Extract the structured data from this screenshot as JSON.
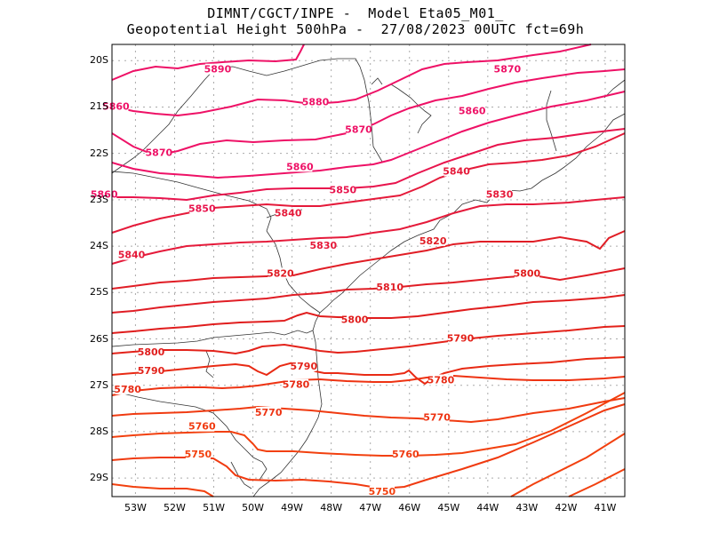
{
  "title": {
    "line1": "DIMNT/CGCT/INPE -  Model Eta05_M01_",
    "line2": "Geopotential Height 500hPa -  27/08/2023 00UTC fct=69h"
  },
  "axes": {
    "lat_labels": [
      "20S",
      "21S",
      "22S",
      "23S",
      "24S",
      "25S",
      "26S",
      "27S",
      "28S",
      "29S"
    ],
    "lon_labels": [
      "53W",
      "52W",
      "51W",
      "50W",
      "49W",
      "48W",
      "47W",
      "46W",
      "45W",
      "44W",
      "43W",
      "42W",
      "41W"
    ]
  },
  "colors": {
    "c5890": "#ee1166",
    "c5880": "#ee1166",
    "c5870": "#ee1166",
    "c5860": "#ee1166",
    "c5850": "#e8144d",
    "c5840": "#e51a3a",
    "c5830": "#e51a3a",
    "c5820": "#e01d25",
    "c5810": "#e01d25",
    "c5800": "#e01d1d",
    "c5790": "#e3221a",
    "c5780": "#e82a14",
    "c5770": "#ee3312",
    "c5760": "#f03a10",
    "c5750": "#f2400e",
    "grid": "#aaaaaa",
    "coast": "#333333"
  },
  "contour_labels": [
    {
      "text": "5890",
      "lat": -20.2,
      "lon": -50.9
    },
    {
      "text": "5870",
      "lat": -20.2,
      "lon": -43.5
    },
    {
      "text": "5880",
      "lat": -20.9,
      "lon": -48.4
    },
    {
      "text": "5860",
      "lat": -21.0,
      "lon": -53.5
    },
    {
      "text": "5860",
      "lat": -21.1,
      "lon": -44.4
    },
    {
      "text": "5870",
      "lat": -21.5,
      "lon": -47.3
    },
    {
      "text": "5870",
      "lat": -22.0,
      "lon": -52.4
    },
    {
      "text": "5860",
      "lat": -22.3,
      "lon": -48.8
    },
    {
      "text": "5840",
      "lat": -22.4,
      "lon": -44.8
    },
    {
      "text": "5860",
      "lat": -22.9,
      "lon": -53.8
    },
    {
      "text": "5850",
      "lat": -22.8,
      "lon": -47.7
    },
    {
      "text": "5830",
      "lat": -22.9,
      "lon": -43.7
    },
    {
      "text": "5850",
      "lat": -23.2,
      "lon": -51.3
    },
    {
      "text": "5840",
      "lat": -23.3,
      "lon": -49.1
    },
    {
      "text": "5820",
      "lat": -23.9,
      "lon": -45.4
    },
    {
      "text": "5830",
      "lat": -24.0,
      "lon": -48.2
    },
    {
      "text": "5840",
      "lat": -24.2,
      "lon": -53.1
    },
    {
      "text": "5800",
      "lat": -24.6,
      "lon": -43.0
    },
    {
      "text": "5820",
      "lat": -24.6,
      "lon": -49.3
    },
    {
      "text": "5810",
      "lat": -24.9,
      "lon": -46.5
    },
    {
      "text": "5800",
      "lat": -25.6,
      "lon": -47.4
    },
    {
      "text": "5790",
      "lat": -26.0,
      "lon": -44.7
    },
    {
      "text": "5800",
      "lat": -26.3,
      "lon": -52.6
    },
    {
      "text": "5790",
      "lat": -26.6,
      "lon": -48.7
    },
    {
      "text": "5790",
      "lat": -26.7,
      "lon": -52.6
    },
    {
      "text": "5780",
      "lat": -26.9,
      "lon": -45.2
    },
    {
      "text": "5780",
      "lat": -27.0,
      "lon": -48.9
    },
    {
      "text": "5780",
      "lat": -27.1,
      "lon": -53.2
    },
    {
      "text": "5770",
      "lat": -27.6,
      "lon": -49.6
    },
    {
      "text": "5770",
      "lat": -27.7,
      "lon": -45.3
    },
    {
      "text": "5760",
      "lat": -27.9,
      "lon": -51.3
    },
    {
      "text": "5750",
      "lat": -28.5,
      "lon": -51.4
    },
    {
      "text": "5760",
      "lat": -28.5,
      "lon": -46.1
    },
    {
      "text": "5750",
      "lat": -29.3,
      "lon": -46.7
    }
  ]
}
